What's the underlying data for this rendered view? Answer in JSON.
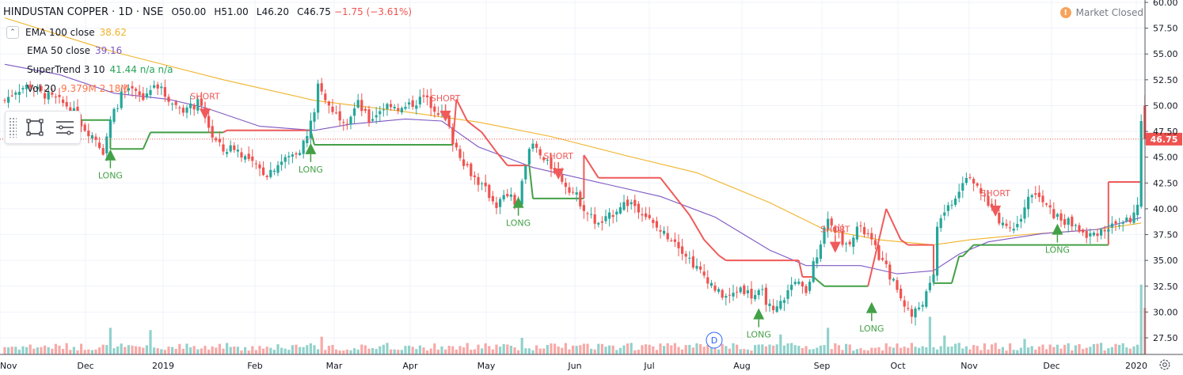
{
  "header": {
    "symbol": "HINDUSTAN COPPER · 1D · NSE",
    "open": "O50.00",
    "high": "H51.00",
    "low": "L46.20",
    "close": "C46.75",
    "change": "−1.75 (−3.61%)"
  },
  "indicators": [
    {
      "name": "EMA 100 close",
      "value": "38.62",
      "color": "#f0b429"
    },
    {
      "name": "EMA 50 close",
      "value": "39.16",
      "color": "#7e57c2"
    },
    {
      "name": "SuperTrend 3 10",
      "value": "41.44  n/a  n/a",
      "color": "#26a65b"
    },
    {
      "name": "Vol 20",
      "value": "9.379M  2.18M",
      "color": "#ff7043"
    }
  ],
  "market_status": {
    "icon": "!",
    "label": "Market Closed"
  },
  "price_tag": "46.75",
  "events_marker": "D",
  "chart_data": {
    "type": "candlestick",
    "y_axis": {
      "ticks": [
        27.5,
        30.0,
        32.5,
        35.0,
        37.5,
        40.0,
        42.5,
        45.0,
        47.5,
        50.0,
        52.5,
        55.0,
        57.5,
        60.0
      ],
      "range": [
        26,
        60.5
      ],
      "side": "right"
    },
    "x_axis": {
      "ticks": [
        "Nov",
        "Dec",
        "2019",
        "Feb",
        "Mar",
        "Apr",
        "May",
        "Jun",
        "Jul",
        "Aug",
        "Sep",
        "Oct",
        "Nov",
        "Dec",
        "2020"
      ]
    },
    "last_price": 46.75,
    "close_path": [
      [
        0,
        50.5
      ],
      [
        3,
        51.5
      ],
      [
        7,
        52.0
      ],
      [
        10,
        51.2
      ],
      [
        14,
        50.6
      ],
      [
        18,
        49.8
      ],
      [
        22,
        47.8
      ],
      [
        25,
        46.8
      ],
      [
        27,
        45.6
      ],
      [
        29,
        48.5
      ],
      [
        32,
        51.0
      ],
      [
        35,
        51.4
      ],
      [
        38,
        50.6
      ],
      [
        41,
        52.4
      ],
      [
        44,
        51.0
      ],
      [
        47,
        50.0
      ],
      [
        50,
        49.6
      ],
      [
        53,
        50.2
      ],
      [
        55,
        49.0
      ],
      [
        57,
        47.0
      ],
      [
        60,
        45.6
      ],
      [
        63,
        46.0
      ],
      [
        66,
        45.0
      ],
      [
        69,
        44.0
      ],
      [
        72,
        43.4
      ],
      [
        75,
        44.4
      ],
      [
        78,
        45.0
      ],
      [
        81,
        45.8
      ],
      [
        83,
        47.0
      ],
      [
        85,
        49.6
      ],
      [
        86,
        51.8
      ],
      [
        88,
        50.4
      ],
      [
        91,
        49.2
      ],
      [
        94,
        48.6
      ],
      [
        97,
        50.2
      ],
      [
        100,
        48.5
      ],
      [
        103,
        49.6
      ],
      [
        106,
        50.2
      ],
      [
        109,
        49.6
      ],
      [
        112,
        50.2
      ],
      [
        115,
        50.8
      ],
      [
        118,
        49.8
      ],
      [
        121,
        48.8
      ],
      [
        123,
        46.6
      ],
      [
        126,
        44.6
      ],
      [
        129,
        43.0
      ],
      [
        132,
        41.8
      ],
      [
        135,
        40.4
      ],
      [
        138,
        41.4
      ],
      [
        141,
        40.2
      ],
      [
        143,
        44.6
      ],
      [
        145,
        46.2
      ],
      [
        148,
        44.6
      ],
      [
        151,
        43.8
      ],
      [
        154,
        42.4
      ],
      [
        157,
        41.2
      ],
      [
        160,
        39.6
      ],
      [
        163,
        38.4
      ],
      [
        166,
        39.2
      ],
      [
        169,
        40.4
      ],
      [
        172,
        40.6
      ],
      [
        175,
        39.8
      ],
      [
        178,
        38.4
      ],
      [
        181,
        37.6
      ],
      [
        184,
        37.0
      ],
      [
        187,
        35.6
      ],
      [
        190,
        34.2
      ],
      [
        193,
        33.2
      ],
      [
        196,
        31.8
      ],
      [
        199,
        31.4
      ],
      [
        202,
        32.4
      ],
      [
        205,
        31.6
      ],
      [
        208,
        31.8
      ],
      [
        211,
        29.8
      ],
      [
        214,
        31.4
      ],
      [
        217,
        33.2
      ],
      [
        220,
        31.6
      ],
      [
        222,
        34.6
      ],
      [
        224,
        36.8
      ],
      [
        226,
        39.4
      ],
      [
        228,
        38.0
      ],
      [
        231,
        36.4
      ],
      [
        234,
        38.2
      ],
      [
        237,
        37.4
      ],
      [
        240,
        35.4
      ],
      [
        243,
        33.6
      ],
      [
        246,
        31.4
      ],
      [
        249,
        29.6
      ],
      [
        252,
        31.0
      ],
      [
        255,
        33.2
      ],
      [
        256,
        38.6
      ],
      [
        258,
        39.8
      ],
      [
        261,
        41.2
      ],
      [
        263,
        42.8
      ],
      [
        265,
        43.4
      ],
      [
        267,
        41.8
      ],
      [
        270,
        40.6
      ],
      [
        273,
        39.0
      ],
      [
        276,
        38.0
      ],
      [
        279,
        39.4
      ],
      [
        282,
        41.6
      ],
      [
        285,
        40.6
      ],
      [
        288,
        39.4
      ],
      [
        291,
        38.8
      ],
      [
        294,
        38.4
      ],
      [
        297,
        37.2
      ],
      [
        300,
        37.8
      ],
      [
        303,
        38.2
      ],
      [
        306,
        38.6
      ],
      [
        309,
        39.0
      ],
      [
        311,
        40.0
      ],
      [
        312,
        48.5
      ],
      [
        313,
        46.75
      ]
    ],
    "supertrend": [
      [
        0,
        48.6
      ],
      [
        29,
        48.6
      ],
      [
        29,
        45.8
      ],
      [
        38,
        45.8
      ],
      [
        40,
        47.4
      ],
      [
        60,
        47.4
      ],
      [
        61,
        47.6
      ],
      [
        84,
        47.6
      ],
      [
        85,
        46.2
      ],
      [
        120,
        46.2
      ],
      [
        123,
        46.2
      ],
      [
        124,
        50.6
      ],
      [
        127,
        48.5
      ],
      [
        131,
        47.4
      ],
      [
        135,
        45.5
      ],
      [
        138,
        44.2
      ],
      [
        144,
        44.2
      ],
      [
        145,
        41.0
      ],
      [
        159,
        41.0
      ],
      [
        159,
        45.2
      ],
      [
        163,
        43.0
      ],
      [
        180,
        43.0
      ],
      [
        184,
        41.2
      ],
      [
        188,
        39.4
      ],
      [
        192,
        37.0
      ],
      [
        196,
        35.5
      ],
      [
        198,
        35.0
      ],
      [
        218,
        35.0
      ],
      [
        219,
        33.4
      ],
      [
        222,
        33.4
      ],
      [
        225,
        32.5
      ],
      [
        237,
        32.5
      ],
      [
        242,
        40.0
      ],
      [
        246,
        37.0
      ],
      [
        248,
        36.5
      ],
      [
        255,
        36.5
      ],
      [
        255,
        32.8
      ],
      [
        260,
        32.8
      ],
      [
        262,
        35.4
      ],
      [
        263,
        35.4
      ],
      [
        266,
        36.5
      ],
      [
        303,
        36.5
      ],
      [
        303,
        42.6
      ],
      [
        312,
        42.6
      ]
    ],
    "ema50": [
      [
        0,
        54.0
      ],
      [
        15,
        53.0
      ],
      [
        30,
        51.2
      ],
      [
        45,
        50.6
      ],
      [
        55,
        49.8
      ],
      [
        70,
        48.0
      ],
      [
        85,
        47.6
      ],
      [
        95,
        48.2
      ],
      [
        110,
        48.7
      ],
      [
        120,
        48.5
      ],
      [
        130,
        46.0
      ],
      [
        145,
        44.0
      ],
      [
        165,
        42.4
      ],
      [
        180,
        41.2
      ],
      [
        195,
        39.2
      ],
      [
        210,
        36.0
      ],
      [
        220,
        34.5
      ],
      [
        235,
        34.5
      ],
      [
        245,
        33.7
      ],
      [
        255,
        34.0
      ],
      [
        262,
        35.6
      ],
      [
        270,
        36.8
      ],
      [
        285,
        37.6
      ],
      [
        300,
        38.0
      ],
      [
        312,
        39.16
      ]
    ],
    "ema100": [
      [
        0,
        58.5
      ],
      [
        30,
        55.2
      ],
      [
        60,
        52.5
      ],
      [
        85,
        50.5
      ],
      [
        110,
        49.4
      ],
      [
        130,
        48.4
      ],
      [
        150,
        47.0
      ],
      [
        170,
        45.2
      ],
      [
        190,
        43.5
      ],
      [
        210,
        40.6
      ],
      [
        225,
        38.0
      ],
      [
        240,
        37.0
      ],
      [
        255,
        36.5
      ],
      [
        265,
        37.0
      ],
      [
        280,
        37.5
      ],
      [
        300,
        38.0
      ],
      [
        312,
        38.62
      ]
    ],
    "signals": [
      {
        "type": "LONG",
        "x": 29,
        "price": 45.0
      },
      {
        "type": "SHORT",
        "x": 55,
        "price": 49.4
      },
      {
        "type": "LONG",
        "x": 84,
        "price": 45.6
      },
      {
        "type": "SHORT",
        "x": 121,
        "price": 49.2
      },
      {
        "type": "LONG",
        "x": 141,
        "price": 40.4
      },
      {
        "type": "SHORT",
        "x": 152,
        "price": 43.6
      },
      {
        "type": "LONG",
        "x": 207,
        "price": 29.6
      },
      {
        "type": "SHORT",
        "x": 228,
        "price": 36.5
      },
      {
        "type": "LONG",
        "x": 238,
        "price": 30.2
      },
      {
        "type": "SHORT",
        "x": 272,
        "price": 40.0
      },
      {
        "type": "LONG",
        "x": 289,
        "price": 37.8
      }
    ],
    "volume_spikes": [
      [
        29,
        2.4
      ],
      [
        40,
        2.2
      ],
      [
        87,
        1.6
      ],
      [
        142,
        1.5
      ],
      [
        213,
        1.8
      ],
      [
        226,
        2.4
      ],
      [
        254,
        3.4
      ],
      [
        258,
        1.7
      ],
      [
        280,
        1.4
      ],
      [
        312,
        6.3
      ],
      [
        313,
        4.2
      ]
    ],
    "colors": {
      "up": "#26a69a",
      "down": "#ef5350",
      "ema50": "#7e57c2",
      "ema100": "#f0b429",
      "supertrend_up": "#43a047",
      "supertrend_down": "#f05a5a",
      "price_tag": "#ef5350"
    }
  }
}
